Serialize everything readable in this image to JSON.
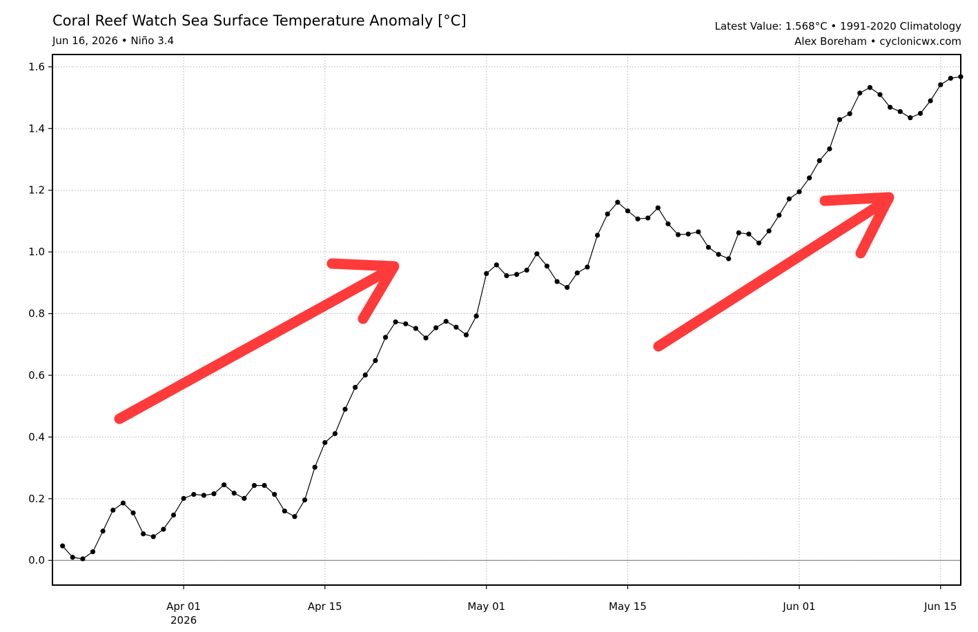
{
  "header": {
    "title": "Coral Reef Watch Sea Surface Temperature Anomaly [°C]",
    "subtitle": "Jun 16, 2026 • Niño 3.4",
    "info_line1": "Latest Value: 1.568°C • 1991-2020 Climatology",
    "info_line2": "Alex Boreham • cyclonicwx.com"
  },
  "chart_data": {
    "type": "line",
    "title": "Coral Reef Watch Sea Surface Temperature Anomaly [°C]",
    "subtitle": "Jun 16, 2026 • Niño 3.4",
    "xlabel": "",
    "ylabel": "",
    "x_start": "2026-03-20",
    "x_end": "2026-06-16",
    "xlim": [
      "2026-03-19",
      "2026-06-17"
    ],
    "ylim": [
      -0.08,
      1.64
    ],
    "yticks": [
      0.0,
      0.2,
      0.4,
      0.6,
      0.8,
      1.0,
      1.2,
      1.4,
      1.6
    ],
    "ytick_labels": [
      "0.0",
      "0.2",
      "0.4",
      "0.6",
      "0.8",
      "1.0",
      "1.2",
      "1.4",
      "1.6"
    ],
    "xticks": [
      {
        "date": "2026-04-01",
        "label": "Apr 01",
        "sublabel": "2026"
      },
      {
        "date": "2026-04-15",
        "label": "Apr 15",
        "sublabel": ""
      },
      {
        "date": "2026-05-01",
        "label": "May 01",
        "sublabel": ""
      },
      {
        "date": "2026-05-15",
        "label": "May 15",
        "sublabel": ""
      },
      {
        "date": "2026-06-01",
        "label": "Jun 01",
        "sublabel": ""
      },
      {
        "date": "2026-06-15",
        "label": "Jun 15",
        "sublabel": ""
      }
    ],
    "grid": true,
    "zero_line": true,
    "line_color": "#000000",
    "arrow_color": "#ff3a3a",
    "values": [
      0.047,
      0.01,
      0.005,
      0.028,
      0.095,
      0.163,
      0.186,
      0.154,
      0.086,
      0.077,
      0.101,
      0.147,
      0.201,
      0.214,
      0.211,
      0.216,
      0.245,
      0.218,
      0.201,
      0.243,
      0.243,
      0.214,
      0.16,
      0.142,
      0.196,
      0.302,
      0.382,
      0.411,
      0.49,
      0.561,
      0.601,
      0.648,
      0.723,
      0.773,
      0.767,
      0.752,
      0.721,
      0.754,
      0.775,
      0.756,
      0.731,
      0.792,
      0.93,
      0.958,
      0.923,
      0.927,
      0.941,
      0.994,
      0.954,
      0.904,
      0.885,
      0.932,
      0.951,
      1.054,
      1.123,
      1.161,
      1.133,
      1.107,
      1.11,
      1.143,
      1.091,
      1.056,
      1.058,
      1.065,
      1.015,
      0.992,
      0.978,
      1.062,
      1.058,
      1.029,
      1.068,
      1.119,
      1.172,
      1.195,
      1.24,
      1.296,
      1.334,
      1.429,
      1.448,
      1.515,
      1.533,
      1.51,
      1.469,
      1.455,
      1.435,
      1.449,
      1.49,
      1.542,
      1.563,
      1.568
    ]
  }
}
